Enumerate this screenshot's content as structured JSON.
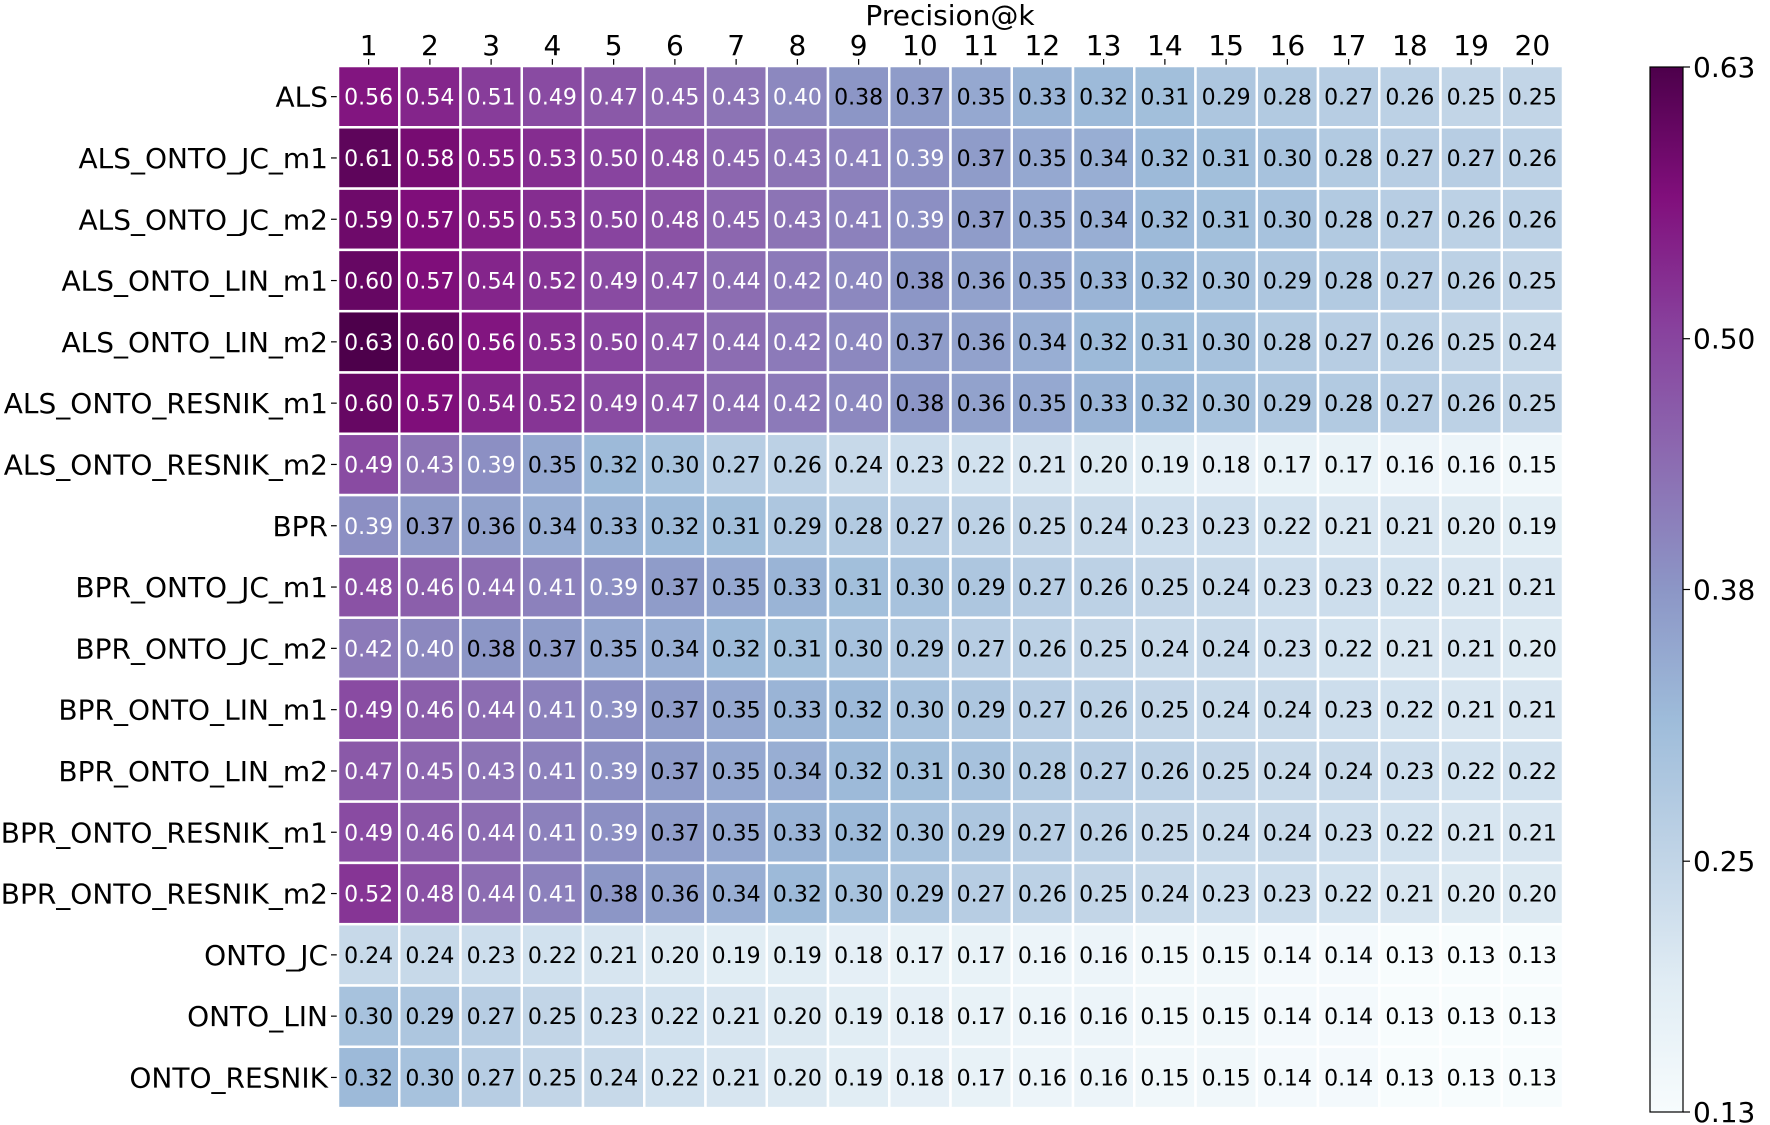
{
  "chart_data": {
    "type": "heatmap",
    "title": "Precision@k",
    "xlabel": "",
    "ylabel": "",
    "x_categories": [
      "1",
      "2",
      "3",
      "4",
      "5",
      "6",
      "7",
      "8",
      "9",
      "10",
      "11",
      "12",
      "13",
      "14",
      "15",
      "16",
      "17",
      "18",
      "19",
      "20"
    ],
    "y_categories": [
      "ALS",
      "ALS_ONTO_JC_m1",
      "ALS_ONTO_JC_m2",
      "ALS_ONTO_LIN_m1",
      "ALS_ONTO_LIN_m2",
      "ALS_ONTO_RESNIK_m1",
      "ALS_ONTO_RESNIK_m2",
      "BPR",
      "BPR_ONTO_JC_m1",
      "BPR_ONTO_JC_m2",
      "BPR_ONTO_LIN_m1",
      "BPR_ONTO_LIN_m2",
      "BPR_ONTO_RESNIK_m1",
      "BPR_ONTO_RESNIK_m2",
      "ONTO_JC",
      "ONTO_LIN",
      "ONTO_RESNIK"
    ],
    "values": [
      [
        0.56,
        0.54,
        0.51,
        0.49,
        0.47,
        0.45,
        0.43,
        0.4,
        0.38,
        0.37,
        0.35,
        0.33,
        0.32,
        0.31,
        0.29,
        0.28,
        0.27,
        0.26,
        0.25,
        0.25
      ],
      [
        0.61,
        0.58,
        0.55,
        0.53,
        0.5,
        0.48,
        0.45,
        0.43,
        0.41,
        0.39,
        0.37,
        0.35,
        0.34,
        0.32,
        0.31,
        0.3,
        0.28,
        0.27,
        0.27,
        0.26
      ],
      [
        0.59,
        0.57,
        0.55,
        0.53,
        0.5,
        0.48,
        0.45,
        0.43,
        0.41,
        0.39,
        0.37,
        0.35,
        0.34,
        0.32,
        0.31,
        0.3,
        0.28,
        0.27,
        0.26,
        0.26
      ],
      [
        0.6,
        0.57,
        0.54,
        0.52,
        0.49,
        0.47,
        0.44,
        0.42,
        0.4,
        0.38,
        0.36,
        0.35,
        0.33,
        0.32,
        0.3,
        0.29,
        0.28,
        0.27,
        0.26,
        0.25
      ],
      [
        0.63,
        0.6,
        0.56,
        0.53,
        0.5,
        0.47,
        0.44,
        0.42,
        0.4,
        0.37,
        0.36,
        0.34,
        0.32,
        0.31,
        0.3,
        0.28,
        0.27,
        0.26,
        0.25,
        0.24
      ],
      [
        0.6,
        0.57,
        0.54,
        0.52,
        0.49,
        0.47,
        0.44,
        0.42,
        0.4,
        0.38,
        0.36,
        0.35,
        0.33,
        0.32,
        0.3,
        0.29,
        0.28,
        0.27,
        0.26,
        0.25
      ],
      [
        0.49,
        0.43,
        0.39,
        0.35,
        0.32,
        0.3,
        0.27,
        0.26,
        0.24,
        0.23,
        0.22,
        0.21,
        0.2,
        0.19,
        0.18,
        0.17,
        0.17,
        0.16,
        0.16,
        0.15
      ],
      [
        0.39,
        0.37,
        0.36,
        0.34,
        0.33,
        0.32,
        0.31,
        0.29,
        0.28,
        0.27,
        0.26,
        0.25,
        0.24,
        0.23,
        0.23,
        0.22,
        0.21,
        0.21,
        0.2,
        0.19
      ],
      [
        0.48,
        0.46,
        0.44,
        0.41,
        0.39,
        0.37,
        0.35,
        0.33,
        0.31,
        0.3,
        0.29,
        0.27,
        0.26,
        0.25,
        0.24,
        0.23,
        0.23,
        0.22,
        0.21,
        0.21
      ],
      [
        0.42,
        0.4,
        0.38,
        0.37,
        0.35,
        0.34,
        0.32,
        0.31,
        0.3,
        0.29,
        0.27,
        0.26,
        0.25,
        0.24,
        0.24,
        0.23,
        0.22,
        0.21,
        0.21,
        0.2
      ],
      [
        0.49,
        0.46,
        0.44,
        0.41,
        0.39,
        0.37,
        0.35,
        0.33,
        0.32,
        0.3,
        0.29,
        0.27,
        0.26,
        0.25,
        0.24,
        0.24,
        0.23,
        0.22,
        0.21,
        0.21
      ],
      [
        0.47,
        0.45,
        0.43,
        0.41,
        0.39,
        0.37,
        0.35,
        0.34,
        0.32,
        0.31,
        0.3,
        0.28,
        0.27,
        0.26,
        0.25,
        0.24,
        0.24,
        0.23,
        0.22,
        0.22
      ],
      [
        0.49,
        0.46,
        0.44,
        0.41,
        0.39,
        0.37,
        0.35,
        0.33,
        0.32,
        0.3,
        0.29,
        0.27,
        0.26,
        0.25,
        0.24,
        0.24,
        0.23,
        0.22,
        0.21,
        0.21
      ],
      [
        0.52,
        0.48,
        0.44,
        0.41,
        0.38,
        0.36,
        0.34,
        0.32,
        0.3,
        0.29,
        0.27,
        0.26,
        0.25,
        0.24,
        0.23,
        0.23,
        0.22,
        0.21,
        0.2,
        0.2
      ],
      [
        0.24,
        0.24,
        0.23,
        0.22,
        0.21,
        0.2,
        0.19,
        0.19,
        0.18,
        0.17,
        0.17,
        0.16,
        0.16,
        0.15,
        0.15,
        0.14,
        0.14,
        0.13,
        0.13,
        0.13
      ],
      [
        0.3,
        0.29,
        0.27,
        0.25,
        0.23,
        0.22,
        0.21,
        0.2,
        0.19,
        0.18,
        0.17,
        0.16,
        0.16,
        0.15,
        0.15,
        0.14,
        0.14,
        0.13,
        0.13,
        0.13
      ],
      [
        0.32,
        0.3,
        0.27,
        0.25,
        0.24,
        0.22,
        0.21,
        0.2,
        0.19,
        0.18,
        0.17,
        0.16,
        0.16,
        0.15,
        0.15,
        0.14,
        0.14,
        0.13,
        0.13,
        0.13
      ]
    ],
    "colorbar": {
      "range": [
        0.13,
        0.63
      ],
      "tick_values": [
        0.13,
        0.25,
        0.38,
        0.5,
        0.63
      ],
      "tick_labels": [
        "0.13",
        "0.25",
        "0.38",
        "0.50",
        "0.63"
      ],
      "colormap": "BuPu",
      "stops": [
        "#f7fcfd",
        "#e0ecf4",
        "#bfd3e6",
        "#9ebcda",
        "#8c96c6",
        "#8c6bb1",
        "#88419d",
        "#810f7c",
        "#4d004b"
      ]
    },
    "cell_text_colors": {
      "dark": "#000000",
      "light": "#ffffff"
    },
    "grid": false,
    "colorbar_placement": "right"
  }
}
